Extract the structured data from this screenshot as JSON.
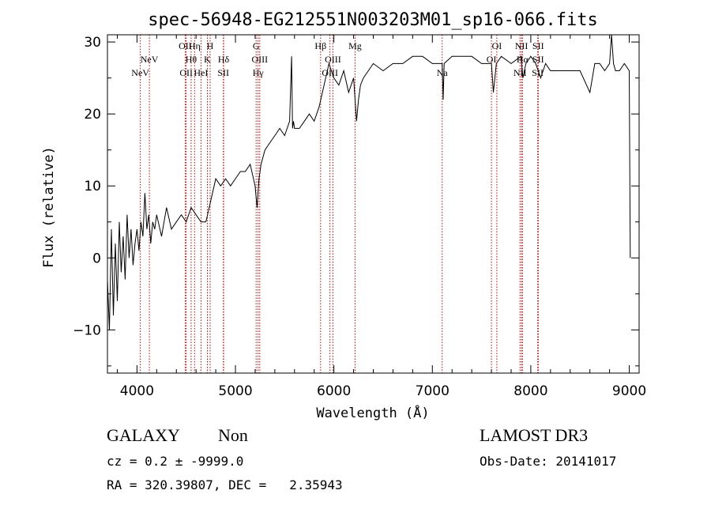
{
  "chart_data": {
    "type": "line",
    "title": "spec-56948-EG212551N003203M01_sp16-066.fits",
    "xlabel": "Wavelength (Å)",
    "ylabel": "Flux (relative)",
    "xlim": [
      3700,
      9100
    ],
    "ylim": [
      -16,
      31
    ],
    "xticks": [
      4000,
      5000,
      6000,
      7000,
      8000,
      9000
    ],
    "yticks": [
      -10,
      0,
      10,
      20,
      30
    ],
    "grid": false,
    "series": [
      {
        "x": [
          3700,
          3720,
          3740,
          3760,
          3780,
          3800,
          3820,
          3840,
          3860,
          3880,
          3900,
          3920,
          3940,
          3960,
          3980,
          4000,
          4020,
          4040,
          4060,
          4080,
          4100,
          4120,
          4140,
          4160,
          4180,
          4200,
          4250,
          4300,
          4350,
          4400,
          4450,
          4500,
          4550,
          4600,
          4650,
          4700,
          4750,
          4800,
          4850,
          4900,
          4950,
          5000,
          5050,
          5100,
          5150,
          5200,
          5220,
          5240,
          5260,
          5300,
          5350,
          5400,
          5450,
          5500,
          5550,
          5570,
          5580,
          5590,
          5600,
          5650,
          5700,
          5750,
          5800,
          5850,
          5900,
          5950,
          6000,
          6050,
          6100,
          6150,
          6200,
          6230,
          6250,
          6270,
          6300,
          6350,
          6400,
          6500,
          6600,
          6700,
          6800,
          6900,
          7000,
          7100,
          7110,
          7120,
          7200,
          7300,
          7400,
          7500,
          7600,
          7620,
          7650,
          7700,
          7800,
          7900,
          7920,
          7950,
          8000,
          8050,
          8100,
          8150,
          8200,
          8300,
          8400,
          8500,
          8600,
          8650,
          8700,
          8750,
          8800,
          8820,
          8840,
          8860,
          8900,
          8950,
          9000,
          9010
        ],
        "y": [
          -3,
          -10,
          4,
          -8,
          2,
          -6,
          5,
          -2,
          3,
          -3,
          6,
          0,
          4,
          -1,
          2,
          4,
          1,
          5,
          3,
          9,
          4,
          6,
          2,
          5,
          4,
          6,
          3,
          7,
          4,
          5,
          6,
          5,
          7,
          6,
          5,
          5,
          8,
          11,
          10,
          11,
          10,
          11,
          12,
          12,
          13,
          10,
          7,
          11,
          13,
          15,
          16,
          17,
          18,
          17,
          19,
          28,
          18,
          19,
          18,
          18,
          19,
          20,
          19,
          21,
          24,
          27,
          25,
          24,
          26,
          23,
          25,
          19,
          22,
          24,
          25,
          26,
          27,
          26,
          27,
          27,
          28,
          28,
          27,
          27,
          22,
          27,
          28,
          28,
          28,
          27,
          27,
          23,
          27,
          28,
          27,
          28,
          25,
          27,
          28,
          27,
          25,
          27,
          26,
          26,
          26,
          26,
          23,
          27,
          27,
          26,
          27,
          31,
          27,
          26,
          26,
          27,
          26,
          0
        ],
        "color": "#000000"
      }
    ],
    "spectral_lines": [
      {
        "label": "NeV",
        "x": 4034,
        "label_row": 2
      },
      {
        "label": "NeV",
        "x": 4126,
        "label_row": 1
      },
      {
        "label": "OII",
        "x": 4490,
        "label_row": 0
      },
      {
        "label": "Hη",
        "x": 4585,
        "label_row": 0
      },
      {
        "label": "Hθ",
        "x": 4550,
        "label_row": 1
      },
      {
        "label": "OII",
        "x": 4500,
        "label_row": 2
      },
      {
        "label": "HeI",
        "x": 4650,
        "label_row": 2
      },
      {
        "label": "H",
        "x": 4743,
        "label_row": 0
      },
      {
        "label": "K",
        "x": 4715,
        "label_row": 1
      },
      {
        "label": "Hδ",
        "x": 4880,
        "label_row": 1
      },
      {
        "label": "SII",
        "x": 4877,
        "label_row": 2
      },
      {
        "label": "G",
        "x": 5210,
        "label_row": 0
      },
      {
        "label": "OIII",
        "x": 5247,
        "label_row": 1
      },
      {
        "label": "Hγ",
        "x": 5230,
        "label_row": 2
      },
      {
        "label": "Hβ",
        "x": 5865,
        "label_row": 0
      },
      {
        "label": "OIII",
        "x": 5990,
        "label_row": 1
      },
      {
        "label": "OIII",
        "x": 5960,
        "label_row": 2
      },
      {
        "label": "Mg",
        "x": 6215,
        "label_row": 0
      },
      {
        "label": "Na",
        "x": 7100,
        "label_row": 2
      },
      {
        "label": "OI",
        "x": 7655,
        "label_row": 0
      },
      {
        "label": "OI",
        "x": 7600,
        "label_row": 1
      },
      {
        "label": "NII",
        "x": 7905,
        "label_row": 0
      },
      {
        "label": "Hα",
        "x": 7915,
        "label_row": 1
      },
      {
        "label": "NII",
        "x": 7890,
        "label_row": 2
      },
      {
        "label": "SII",
        "x": 8075,
        "label_row": 0
      },
      {
        "label": "SII",
        "x": 8075,
        "label_row": 1
      },
      {
        "label": "SII",
        "x": 8070,
        "label_row": 2
      }
    ],
    "line_color": "#cc0000"
  },
  "footer": {
    "object_type": "GALAXY",
    "subclass": "Non",
    "survey": "LAMOST DR3",
    "cz": "cz = 0.2 ± -9999.0",
    "obs_date": "Obs-Date: 20141017",
    "coords": "RA = 320.39807, DEC =   2.35943"
  }
}
